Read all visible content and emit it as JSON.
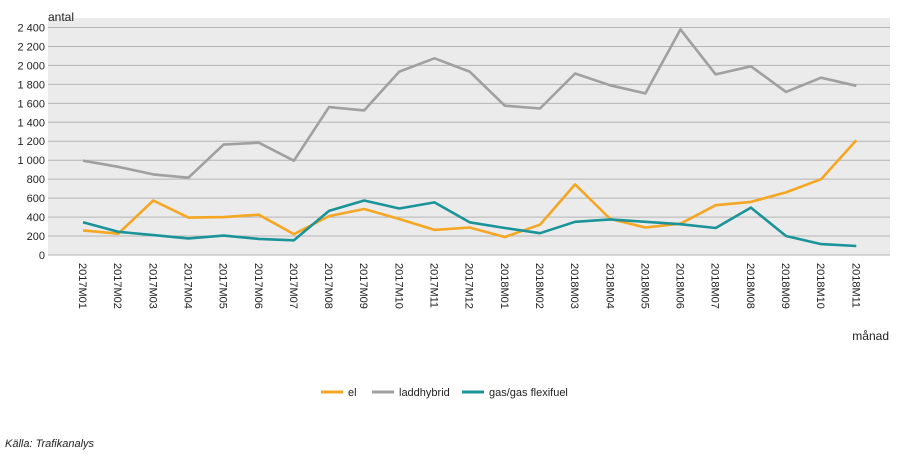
{
  "chart_data": {
    "type": "line",
    "ylabel": "antal",
    "xlabel": "månad",
    "ylim": [
      0,
      2500
    ],
    "yticks": [
      0,
      200,
      400,
      600,
      800,
      1000,
      1200,
      1400,
      1600,
      1800,
      2000,
      2200,
      2400
    ],
    "ytick_labels": [
      "0",
      "200",
      "400",
      "600",
      "800",
      "1 000",
      "1 200",
      "1 400",
      "1 600",
      "1 800",
      "2 000",
      "2 200",
      "2 400"
    ],
    "grid": true,
    "legend_position": "bottom",
    "categories": [
      "2017M01",
      "2017M02",
      "2017M03",
      "2017M04",
      "2017M05",
      "2017M06",
      "2017M07",
      "2017M08",
      "2017M09",
      "2017M10",
      "2017M11",
      "2017M12",
      "2018M01",
      "2018M02",
      "2018M03",
      "2018M04",
      "2018M05",
      "2018M06",
      "2018M07",
      "2018M08",
      "2018M09",
      "2018M10",
      "2018M11"
    ],
    "series": [
      {
        "name": "el",
        "color": "#f5a623",
        "values": [
          260,
          225,
          575,
          395,
          400,
          425,
          220,
          410,
          485,
          380,
          265,
          290,
          190,
          320,
          745,
          380,
          290,
          330,
          525,
          560,
          660,
          800,
          1210
        ]
      },
      {
        "name": "laddhybrid",
        "color": "#a0a0a0",
        "values": [
          995,
          930,
          850,
          815,
          1165,
          1185,
          995,
          1560,
          1525,
          1935,
          2075,
          1935,
          1575,
          1545,
          1915,
          1790,
          1705,
          2380,
          1905,
          1990,
          1720,
          1870,
          1785
        ]
      },
      {
        "name": "gas/gas flexifuel",
        "color": "#1a9399",
        "values": [
          345,
          245,
          210,
          175,
          205,
          170,
          155,
          465,
          575,
          490,
          555,
          345,
          285,
          230,
          350,
          375,
          350,
          325,
          285,
          500,
          200,
          115,
          95
        ]
      }
    ]
  },
  "source_text": "Källa: Trafikanalys"
}
